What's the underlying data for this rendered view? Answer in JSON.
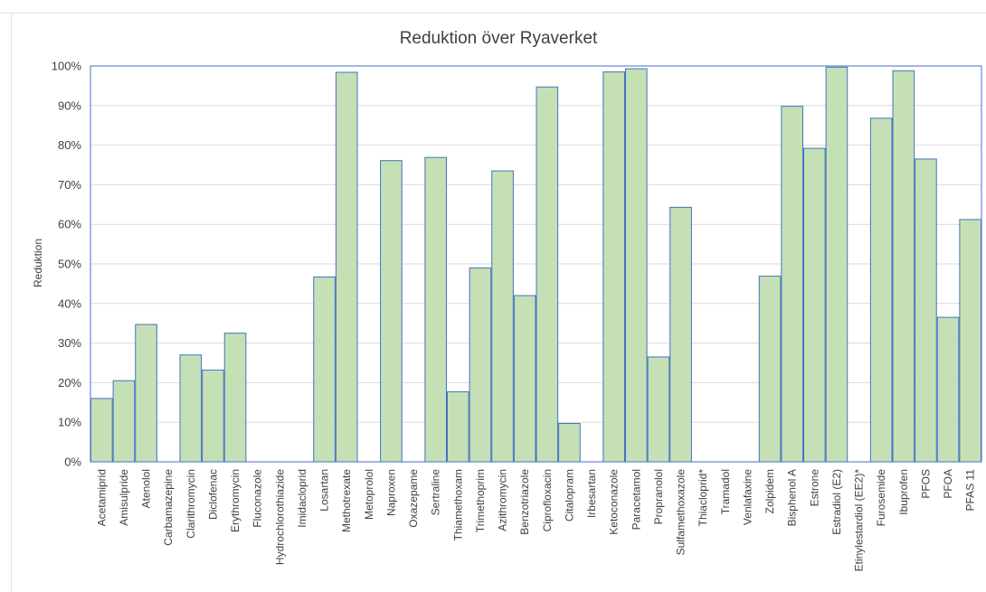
{
  "chart_data": {
    "type": "bar",
    "title": "Reduktion över Ryaverket",
    "xlabel": "",
    "ylabel": "Reduktion",
    "ylim": [
      0,
      1
    ],
    "yticks": [
      "0%",
      "10%",
      "20%",
      "30%",
      "40%",
      "50%",
      "60%",
      "70%",
      "80%",
      "90%",
      "100%"
    ],
    "grid": true,
    "legend": "none",
    "colors": {
      "fill": "#c5e0b4",
      "stroke": "#4472c4",
      "grid": "#d9d9d9",
      "text": "#404040"
    },
    "categories": [
      "Acetamiprid",
      "Amisulpride",
      "Atenolol",
      "Carbamazepine",
      "Clarithromycin",
      "Diclofenac",
      "Erythromycin",
      "Fluconazole",
      "Hydrochlorothiazide",
      "Imidacloprid",
      "Losartan",
      "Methotrexate",
      "Metoprolol",
      "Naproxen",
      "Oxazepame",
      "Sertraline",
      "Thiamethoxam",
      "Trimethoprim",
      "Azithromycin",
      "Benzotriazole",
      "Ciprofloxacin",
      "Citalopram",
      "Irbesartan",
      "Ketoconazole",
      "Paracetamol",
      "Propranolol",
      "Sulfamethoxazole",
      "Thiacloprid*",
      "Tramadol",
      "Venlafaxine",
      "Zolpidem",
      "Bisphenol A",
      "Estrone",
      "Estradiol (E2)",
      "Etinylestardiol (EE2)*",
      "Furosemide",
      "Ibuprofen",
      "PFOS",
      "PFOA",
      "PFAS 11"
    ],
    "values": [
      0.16,
      0.205,
      0.347,
      0,
      0.27,
      0.232,
      0.325,
      0,
      0,
      0,
      0.467,
      0.984,
      0,
      0.761,
      0,
      0.769,
      0.177,
      0.49,
      0.735,
      0.42,
      0.947,
      0.097,
      0,
      0.985,
      0.993,
      0.265,
      0.643,
      0,
      0,
      0,
      0.469,
      0.898,
      0.792,
      0.997,
      0,
      0.868,
      0.988,
      0.765,
      0.365,
      0.612
    ]
  }
}
